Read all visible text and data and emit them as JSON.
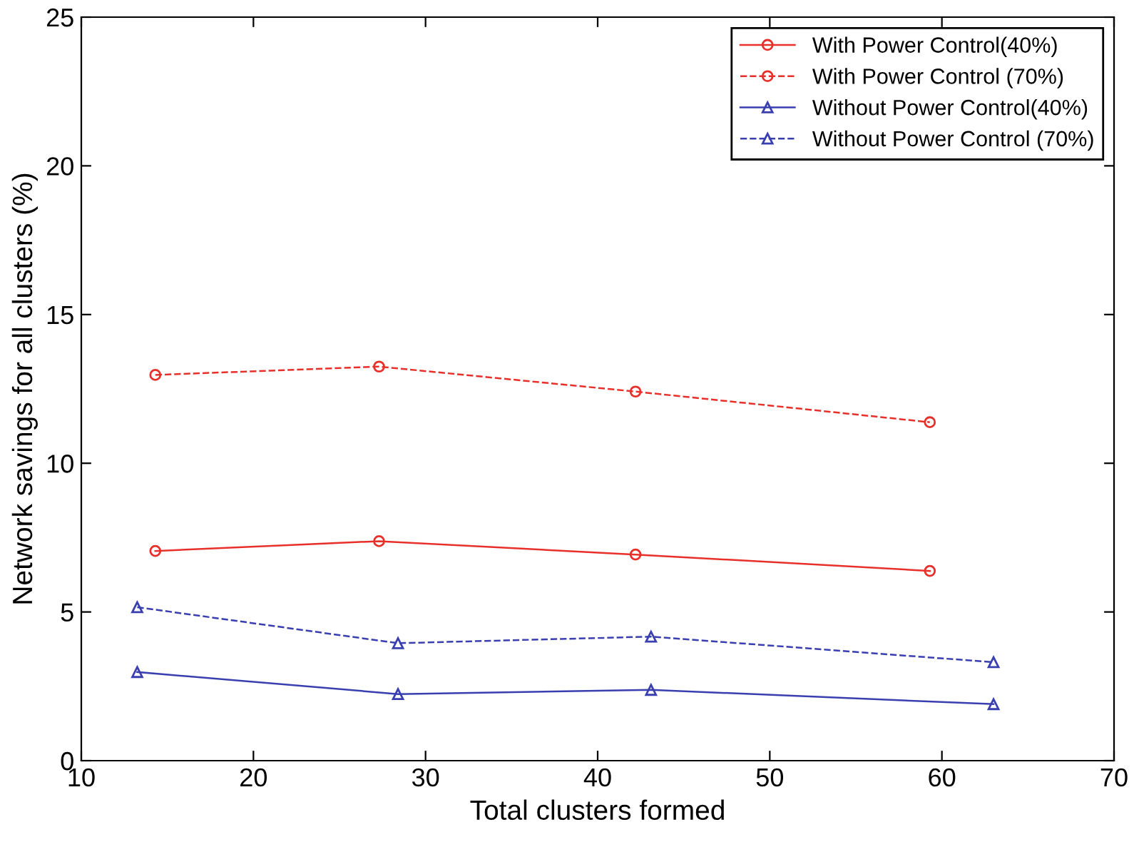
{
  "chart_data": {
    "type": "line",
    "xlabel": "Total clusters formed",
    "ylabel": "Network savings for all clusters (%)",
    "xlim": [
      10,
      70
    ],
    "xticks": [
      10,
      20,
      30,
      40,
      50,
      60,
      70
    ],
    "ylim": [
      0,
      25
    ],
    "yticks": [
      0,
      5,
      10,
      15,
      20,
      25
    ],
    "grid": false,
    "legend": "top right",
    "series": [
      {
        "name": "With Power Control(40%)",
        "color": "#e8302a",
        "marker": "circle",
        "line_style": "solid",
        "x": [
          14.3,
          27.3,
          42.2,
          59.3
        ],
        "values": [
          7.05,
          7.38,
          6.93,
          6.38
        ]
      },
      {
        "name": "With Power Control (70%)",
        "color": "#e8302a",
        "marker": "circle",
        "line_style": "dashed",
        "x": [
          14.3,
          27.3,
          42.2,
          59.3
        ],
        "values": [
          12.97,
          13.25,
          12.41,
          11.38
        ]
      },
      {
        "name": "Without Power Control(40%)",
        "color": "#3a3fb0",
        "marker": "triangle",
        "line_style": "solid",
        "x": [
          13.25,
          28.4,
          43.1,
          63.0
        ],
        "values": [
          2.98,
          2.24,
          2.38,
          1.9
        ]
      },
      {
        "name": "Without Power Control (70%)",
        "color": "#3a3fb0",
        "marker": "triangle",
        "line_style": "dashed",
        "x": [
          13.25,
          28.4,
          43.1,
          63.0
        ],
        "values": [
          5.16,
          3.95,
          4.17,
          3.31
        ]
      }
    ]
  }
}
